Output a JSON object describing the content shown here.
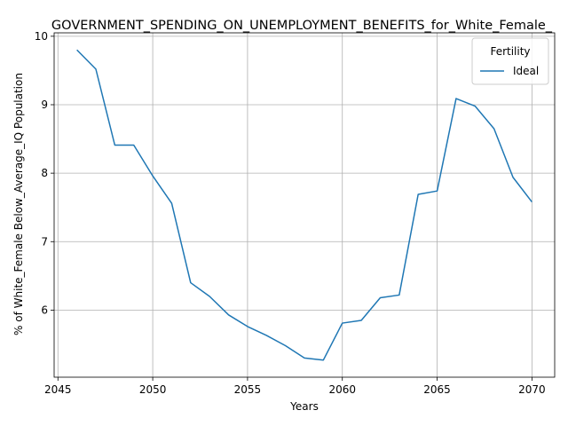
{
  "chart_data": {
    "type": "line",
    "title": "GOVERNMENT_SPENDING_ON_UNEMPLOYMENT_BENEFITS_for_White_Female_",
    "xlabel": "Years",
    "ylabel": "% of White_Female Below_Average_IQ Population",
    "xlim": [
      2044.8,
      2071.2
    ],
    "ylim": [
      5.02,
      10.05
    ],
    "xticks": [
      2045,
      2050,
      2055,
      2060,
      2065,
      2070
    ],
    "yticks": [
      6,
      7,
      8,
      9,
      10
    ],
    "grid": true,
    "legend": {
      "title": "Fertility",
      "position": "top-right"
    },
    "series": [
      {
        "name": "Ideal",
        "color": "#1f77b4",
        "x": [
          2046,
          2047,
          2048,
          2049,
          2050,
          2051,
          2052,
          2053,
          2054,
          2055,
          2056,
          2057,
          2058,
          2059,
          2060,
          2061,
          2062,
          2063,
          2064,
          2065,
          2066,
          2067,
          2068,
          2069,
          2070
        ],
        "y": [
          9.8,
          9.52,
          8.41,
          8.41,
          7.96,
          7.56,
          6.4,
          6.2,
          5.93,
          5.76,
          5.63,
          5.48,
          5.3,
          5.27,
          5.81,
          5.85,
          6.18,
          6.22,
          7.69,
          7.74,
          9.09,
          8.98,
          8.65,
          7.94,
          7.58
        ]
      }
    ]
  }
}
